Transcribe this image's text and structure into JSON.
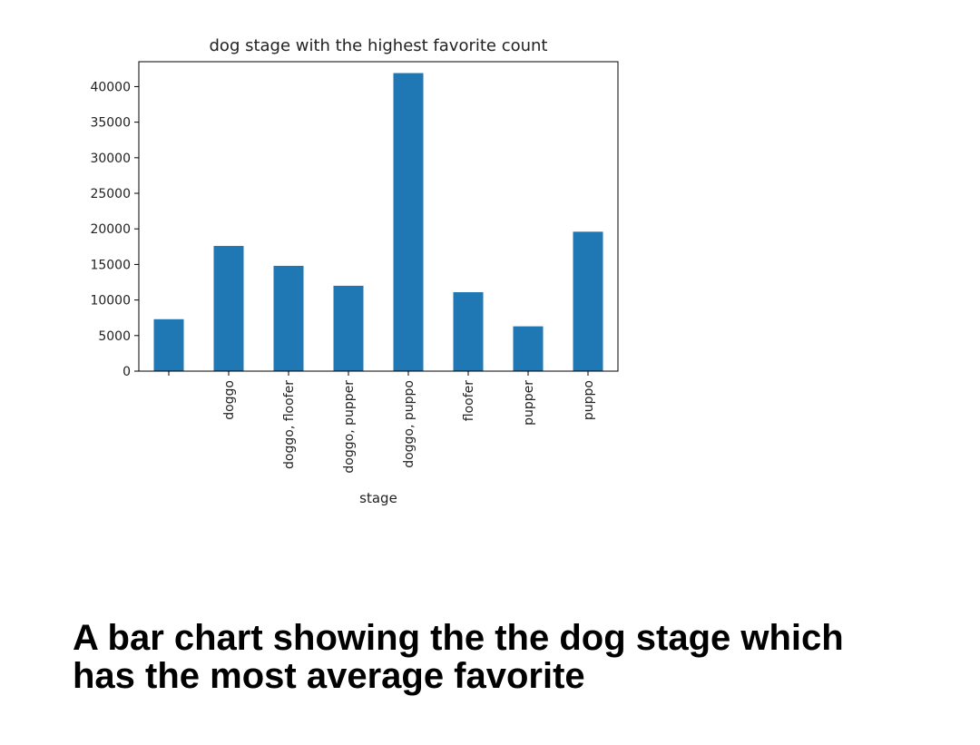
{
  "chart_data": {
    "type": "bar",
    "title": "dog stage with the highest favorite count",
    "xlabel": "stage",
    "ylabel": "",
    "categories": [
      "",
      "doggo",
      "doggo, floofer",
      "doggo, pupper",
      "doggo, puppo",
      "floofer",
      "pupper",
      "puppo"
    ],
    "values": [
      7300,
      17600,
      14800,
      12000,
      41900,
      11100,
      6300,
      19600
    ],
    "ylim": [
      0,
      43500
    ],
    "yticks": [
      0,
      5000,
      10000,
      15000,
      20000,
      25000,
      30000,
      35000,
      40000
    ],
    "bar_color": "#1f77b4",
    "grid": false,
    "legend": "none"
  },
  "caption": "A bar chart showing the the dog stage which has the most average favorite"
}
